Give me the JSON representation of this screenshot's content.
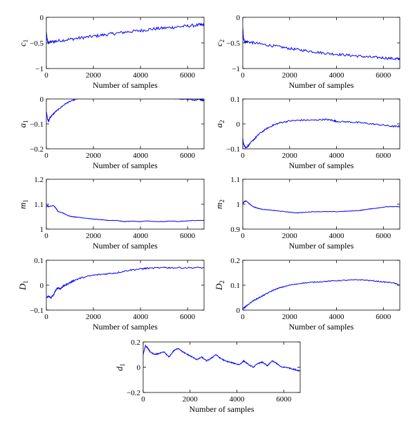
{
  "figure": {
    "xlabel": "Number of samples"
  },
  "chart_data": [
    {
      "type": "line",
      "ylabel": "c",
      "ylabel_sub": "1",
      "xlabel": "Number of samples",
      "xlim": [
        0,
        6700
      ],
      "ylim": [
        -1,
        0
      ],
      "xticks": [
        0,
        2000,
        4000,
        6000
      ],
      "yticks": [
        -1,
        -0.5,
        0
      ],
      "ytick_labels": [
        "−1",
        "−0.5",
        "0"
      ],
      "grid": false,
      "color": "#0000ff",
      "x": [
        0,
        30,
        80,
        200,
        500,
        1000,
        1500,
        2000,
        2500,
        3000,
        3500,
        4000,
        4500,
        5000,
        5500,
        6000,
        6500,
        6700
      ],
      "y": [
        -0.3,
        -0.42,
        -0.5,
        -0.48,
        -0.46,
        -0.43,
        -0.4,
        -0.37,
        -0.34,
        -0.31,
        -0.28,
        -0.26,
        -0.23,
        -0.21,
        -0.19,
        -0.17,
        -0.15,
        -0.15
      ],
      "noise": 0.03
    },
    {
      "type": "line",
      "ylabel": "c",
      "ylabel_sub": "2",
      "xlabel": "Number of samples",
      "xlim": [
        0,
        6700
      ],
      "ylim": [
        -1,
        0
      ],
      "xticks": [
        0,
        2000,
        4000,
        6000
      ],
      "yticks": [
        -1,
        -0.5,
        0
      ],
      "ytick_labels": [
        "−1",
        "−0.5",
        "0"
      ],
      "grid": false,
      "color": "#0000ff",
      "x": [
        0,
        30,
        80,
        200,
        500,
        1000,
        1500,
        2000,
        2500,
        3000,
        3500,
        4000,
        4500,
        5000,
        5500,
        6000,
        6500,
        6700
      ],
      "y": [
        -0.2,
        -0.42,
        -0.47,
        -0.48,
        -0.5,
        -0.54,
        -0.57,
        -0.61,
        -0.64,
        -0.67,
        -0.7,
        -0.72,
        -0.74,
        -0.76,
        -0.78,
        -0.79,
        -0.81,
        -0.81
      ],
      "noise": 0.025
    },
    {
      "type": "line",
      "ylabel": "a",
      "ylabel_sub": "1",
      "xlabel": "Number of samples",
      "xlim": [
        0,
        6700
      ],
      "ylim": [
        -0.2,
        0
      ],
      "xticks": [
        0,
        2000,
        4000,
        6000
      ],
      "yticks": [
        -0.2,
        -0.1,
        0
      ],
      "ytick_labels": [
        "−0.2",
        "−0.1",
        "0"
      ],
      "grid": false,
      "color": "#0000ff",
      "x": [
        0,
        50,
        100,
        150,
        250,
        400,
        600,
        800,
        1000,
        1300,
        1600,
        2000,
        2500,
        3000,
        3500,
        3800,
        3850,
        4000,
        4500,
        5000,
        5400,
        5500,
        6000,
        6300,
        6500,
        6600,
        6700
      ],
      "y": [
        -0.05,
        -0.08,
        -0.09,
        -0.075,
        -0.065,
        -0.05,
        -0.035,
        -0.02,
        -0.01,
        0.0,
        0.005,
        0.01,
        0.01,
        0.01,
        0.01,
        0.01,
        0.015,
        0.01,
        0.01,
        0.01,
        0.01,
        0.0,
        0.0,
        -0.005,
        0.0,
        -0.005,
        -0.005
      ],
      "noise": 0.002
    },
    {
      "type": "line",
      "ylabel": "a",
      "ylabel_sub": "2",
      "xlabel": "Number of samples",
      "xlim": [
        0,
        6700
      ],
      "ylim": [
        -0.1,
        0.1
      ],
      "xticks": [
        0,
        2000,
        4000,
        6000
      ],
      "yticks": [
        -0.1,
        0,
        0.1
      ],
      "ytick_labels": [
        "−0.1",
        "0",
        "0.1"
      ],
      "grid": false,
      "color": "#0000ff",
      "x": [
        0,
        30,
        80,
        150,
        300,
        500,
        700,
        1000,
        1300,
        1600,
        2000,
        2500,
        3000,
        3500,
        3800,
        4000,
        4500,
        5000,
        5500,
        6000,
        6400,
        6700
      ],
      "y": [
        -0.06,
        -0.08,
        -0.09,
        -0.095,
        -0.08,
        -0.06,
        -0.04,
        -0.02,
        -0.005,
        0.005,
        0.012,
        0.015,
        0.015,
        0.018,
        0.015,
        0.01,
        0.008,
        0.005,
        0.0,
        -0.005,
        -0.01,
        -0.01
      ],
      "noise": 0.003
    },
    {
      "type": "line",
      "ylabel": "m",
      "ylabel_sub": "1",
      "xlabel": "Number of samples",
      "xlim": [
        0,
        6700
      ],
      "ylim": [
        1,
        1.2
      ],
      "xticks": [
        0,
        2000,
        4000,
        6000
      ],
      "yticks": [
        1,
        1.1,
        1.2
      ],
      "ytick_labels": [
        "1",
        "1.1",
        "1.2"
      ],
      "grid": false,
      "color": "#0000ff",
      "x": [
        0,
        50,
        100,
        300,
        400,
        500,
        700,
        900,
        1100,
        1300,
        1600,
        2000,
        2300,
        2600,
        3000,
        3300,
        3600,
        4000,
        4300,
        4600,
        5000,
        5300,
        5600,
        6000,
        6300,
        6700
      ],
      "y": [
        1.09,
        1.095,
        1.09,
        1.095,
        1.085,
        1.07,
        1.065,
        1.055,
        1.05,
        1.048,
        1.045,
        1.04,
        1.038,
        1.035,
        1.035,
        1.03,
        1.032,
        1.03,
        1.033,
        1.03,
        1.03,
        1.033,
        1.03,
        1.033,
        1.035,
        1.035
      ],
      "noise": 0.001
    },
    {
      "type": "line",
      "ylabel": "m",
      "ylabel_sub": "2",
      "xlabel": "Number of samples",
      "xlim": [
        0,
        6700
      ],
      "ylim": [
        0.9,
        1.1
      ],
      "xticks": [
        0,
        2000,
        4000,
        6000
      ],
      "yticks": [
        0.9,
        1,
        1.1
      ],
      "ytick_labels": [
        "0.9",
        "1",
        "1.1"
      ],
      "grid": false,
      "color": "#0000ff",
      "x": [
        0,
        50,
        150,
        300,
        450,
        600,
        800,
        1000,
        1300,
        1600,
        2000,
        2300,
        2600,
        3000,
        3500,
        4000,
        4500,
        5000,
        5200,
        5500,
        5800,
        6100,
        6400,
        6700
      ],
      "y": [
        1.0,
        1.01,
        1.013,
        1.0,
        0.99,
        0.985,
        0.98,
        0.978,
        0.975,
        0.972,
        0.968,
        0.965,
        0.967,
        0.97,
        0.97,
        0.97,
        0.972,
        0.975,
        0.978,
        0.982,
        0.985,
        0.99,
        0.99,
        0.99
      ],
      "noise": 0.001
    },
    {
      "type": "line",
      "ylabel": "D",
      "ylabel_sub": "1",
      "xlabel": "Number of samples",
      "xlim": [
        0,
        6700
      ],
      "ylim": [
        -0.1,
        0.1
      ],
      "xticks": [
        0,
        2000,
        4000,
        6000
      ],
      "yticks": [
        -0.1,
        0,
        0.1
      ],
      "ytick_labels": [
        "−0.1",
        "0",
        "0.1"
      ],
      "grid": false,
      "color": "#0000ff",
      "x": [
        0,
        100,
        200,
        300,
        400,
        500,
        600,
        700,
        800,
        1000,
        1200,
        1500,
        2000,
        2500,
        3000,
        3500,
        4000,
        4300,
        5000,
        5300,
        6000,
        6700
      ],
      "y": [
        -0.05,
        -0.045,
        -0.05,
        -0.04,
        -0.02,
        -0.01,
        -0.015,
        -0.005,
        0.0,
        0.01,
        0.02,
        0.03,
        0.04,
        0.045,
        0.05,
        0.06,
        0.065,
        0.068,
        0.07,
        0.07,
        0.07,
        0.07
      ],
      "noise": 0.003
    },
    {
      "type": "line",
      "ylabel": "D",
      "ylabel_sub": "2",
      "xlabel": "Number of samples",
      "xlim": [
        0,
        6700
      ],
      "ylim": [
        0,
        0.2
      ],
      "xticks": [
        0,
        2000,
        4000,
        6000
      ],
      "yticks": [
        0,
        0.1,
        0.2
      ],
      "ytick_labels": [
        "0",
        "0.1",
        "0.2"
      ],
      "grid": false,
      "color": "#0000ff",
      "x": [
        0,
        100,
        200,
        400,
        600,
        800,
        1000,
        1300,
        1600,
        2000,
        2500,
        3000,
        3500,
        4000,
        4500,
        5000,
        5500,
        6000,
        6400,
        6700
      ],
      "y": [
        0.005,
        0.012,
        0.02,
        0.035,
        0.045,
        0.055,
        0.065,
        0.08,
        0.09,
        0.1,
        0.108,
        0.112,
        0.115,
        0.118,
        0.12,
        0.122,
        0.118,
        0.113,
        0.11,
        0.1
      ],
      "noise": 0.002
    },
    {
      "type": "line",
      "ylabel": "d",
      "ylabel_sub": "1",
      "xlabel": "Number of samples",
      "xlim": [
        0,
        6700
      ],
      "ylim": [
        -0.2,
        0.2
      ],
      "xticks": [
        0,
        2000,
        4000,
        6000
      ],
      "yticks": [
        -0.2,
        0,
        0.2
      ],
      "ytick_labels": [
        "−0.2",
        "0",
        "0.2"
      ],
      "grid": false,
      "color": "#0000ff",
      "x": [
        0,
        100,
        200,
        300,
        500,
        700,
        900,
        1100,
        1300,
        1500,
        1700,
        1900,
        2100,
        2300,
        2500,
        2700,
        2900,
        3100,
        3300,
        3500,
        3700,
        3900,
        4100,
        4300,
        4500,
        4700,
        4900,
        5100,
        5300,
        5500,
        5700,
        5900,
        6100,
        6300,
        6500,
        6700
      ],
      "y": [
        0.1,
        0.17,
        0.15,
        0.12,
        0.1,
        0.11,
        0.12,
        0.08,
        0.13,
        0.15,
        0.12,
        0.1,
        0.08,
        0.06,
        0.08,
        0.05,
        0.07,
        0.1,
        0.07,
        0.05,
        0.04,
        0.03,
        0.02,
        0.05,
        0.02,
        0.0,
        0.03,
        0.04,
        0.01,
        0.05,
        0.03,
        0.0,
        0.0,
        -0.01,
        -0.02,
        -0.03
      ],
      "noise": 0.004
    }
  ]
}
